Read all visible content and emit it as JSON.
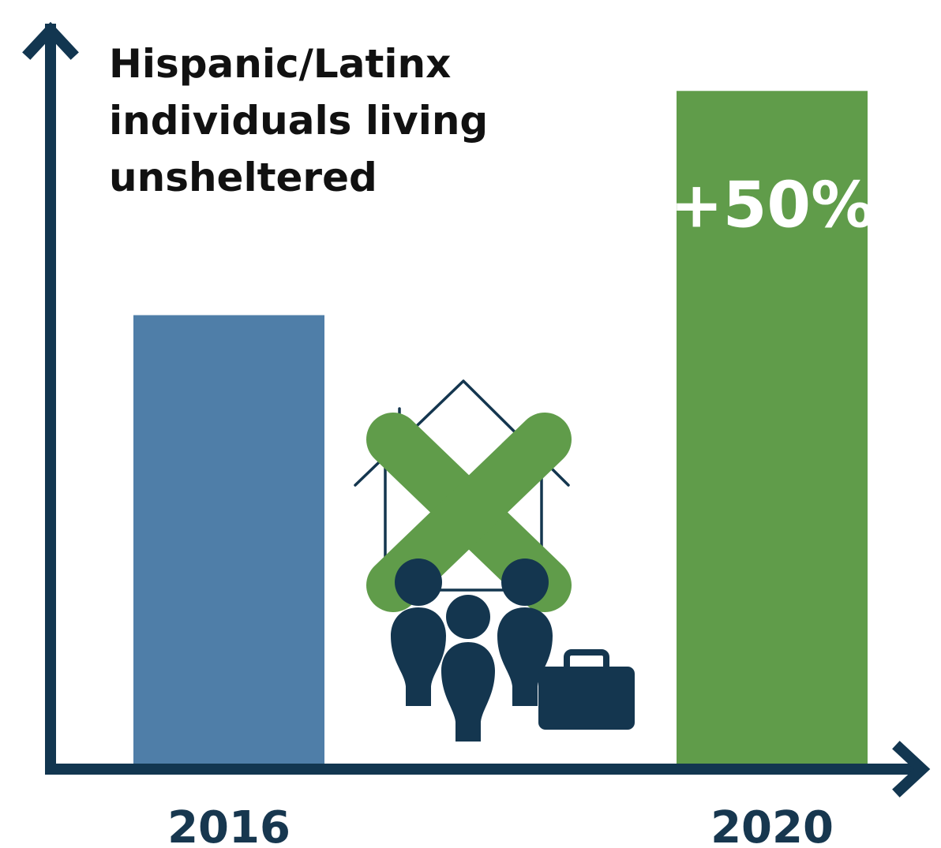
{
  "chart_data": {
    "type": "bar",
    "title_lines": [
      "Hispanic/Latinx",
      "individuals living",
      "unsheltered"
    ],
    "categories": [
      "2016",
      "2020"
    ],
    "values": [
      100,
      150
    ],
    "data_labels": [
      "",
      "+50%"
    ],
    "xlabel": "",
    "ylabel": "",
    "ylim": [
      0,
      165
    ],
    "grid": false,
    "legend": "none",
    "colors": {
      "bar_2016": "#4f7ea8",
      "bar_2020": "#609c4a",
      "axis": "#123650",
      "icon_dark": "#14364f",
      "icon_x": "#609c4a"
    }
  },
  "icons": [
    "homeless-family-icon",
    "house-outline-icon",
    "x-mark-icon",
    "briefcase-icon"
  ]
}
